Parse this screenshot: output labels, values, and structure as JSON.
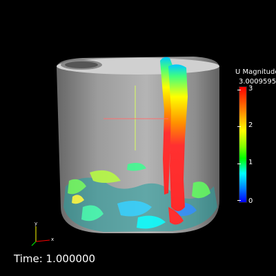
{
  "colorbar": {
    "title": "U Magnitude",
    "max_label": "3.0009595",
    "tick_labels": [
      "3",
      "2",
      "1",
      "0"
    ],
    "colors": [
      "#ff0000",
      "#ffff00",
      "#00ff00",
      "#00ffff",
      "#0000ff"
    ]
  },
  "time": {
    "label": "Time: 1.000000"
  },
  "axes": {
    "x": "x",
    "y": "y"
  }
}
